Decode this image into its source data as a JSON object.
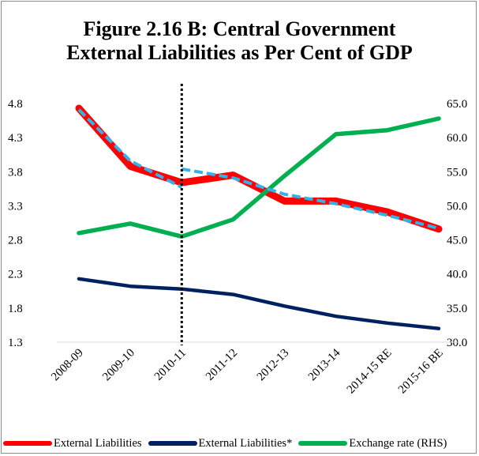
{
  "chart_data": {
    "type": "line",
    "title_lines": [
      "Figure 2.16 B: Central Government",
      "External Liabilities as Per Cent of GDP"
    ],
    "categories": [
      "2008-09",
      "2009-10",
      "2010-11",
      "2011-12",
      "2012-13",
      "2013-14",
      "2014-15 RE",
      "2015-16 BE"
    ],
    "y_left": {
      "ticks": [
        "4.8",
        "4.3",
        "3.8",
        "3.3",
        "2.8",
        "2.3",
        "1.8",
        "1.3"
      ],
      "range": [
        1.3,
        4.8
      ]
    },
    "y_right": {
      "ticks": [
        "65.0",
        "60.0",
        "55.0",
        "50.0",
        "45.0",
        "40.0",
        "35.0",
        "30.0"
      ],
      "range": [
        30.0,
        65.0
      ]
    },
    "series": [
      {
        "name": "External Liabilities",
        "axis": "left",
        "color": "#ff0000",
        "values": [
          4.73,
          3.88,
          3.64,
          3.75,
          3.37,
          3.37,
          3.21,
          2.96
        ]
      },
      {
        "name": "External Liabilities*",
        "axis": "left",
        "color": "#002060",
        "values": [
          2.23,
          2.12,
          2.08,
          2.0,
          1.83,
          1.68,
          1.58,
          1.5
        ]
      },
      {
        "name": "Exchange rate (RHS)",
        "axis": "right",
        "color": "#00b050",
        "values": [
          46.0,
          47.4,
          45.5,
          48.0,
          54.4,
          60.5,
          61.1,
          62.8
        ]
      }
    ],
    "trend_segments": [
      {
        "color": "#33b2ea",
        "values": [
          4.71,
          3.96,
          3.57
        ]
      },
      {
        "color": "#33b2ea",
        "values": [
          null,
          null,
          3.84,
          3.71,
          3.47,
          3.33,
          3.16,
          2.97
        ]
      }
    ],
    "marker": {
      "style": "dotted vertical line",
      "at_category": "2010-11"
    },
    "grid": false,
    "legend_position": "bottom"
  }
}
